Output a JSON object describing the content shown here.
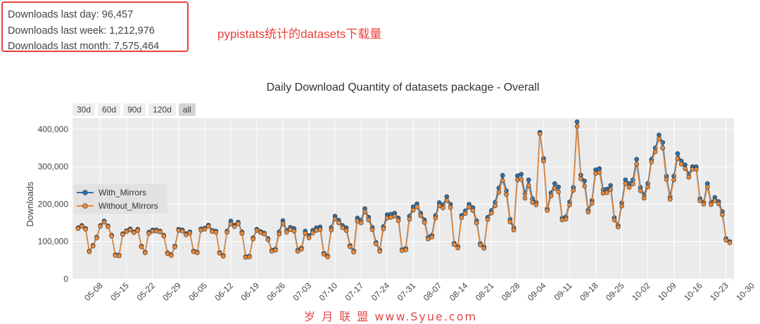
{
  "stats": {
    "last_day": "Downloads last day: 96,457",
    "last_week": "Downloads last week: 1,212,976",
    "last_month": "Downloads last month: 7,575,464"
  },
  "annotation": "pypistats统计的datasets下载量",
  "range_selector": [
    "30d",
    "60d",
    "90d",
    "120d",
    "all"
  ],
  "range_selected": "all",
  "watermark": "岁 月 联 盟  www.Syue.com",
  "colors": {
    "with_mirrors": "#2f6fa8",
    "without_mirrors": "#e8893a",
    "plot_bg": "#ebebeb",
    "accent": "#e8403a"
  },
  "chart_data": {
    "type": "line",
    "title": "Daily Download Quantity of datasets package - Overall",
    "xlabel": "",
    "ylabel": "Downloads",
    "ylim": [
      0,
      430000
    ],
    "yticks": [
      0,
      100000,
      200000,
      300000,
      400000
    ],
    "ytick_labels": [
      "0",
      "100,000",
      "200,000",
      "300,000",
      "400,000"
    ],
    "xtick_labels": [
      "05-08",
      "05-15",
      "05-22",
      "05-29",
      "06-05",
      "06-12",
      "06-19",
      "06-26",
      "07-03",
      "07-10",
      "07-17",
      "07-24",
      "07-31",
      "08-07",
      "08-14",
      "08-21",
      "08-28",
      "09-04",
      "09-11",
      "09-18",
      "09-25",
      "10-02",
      "10-09",
      "10-16",
      "10-23",
      "10-30"
    ],
    "x_start": "05-02",
    "legend": "left-middle",
    "grid": true,
    "series": [
      {
        "name": "With_Mirrors",
        "values": [
          137000,
          143000,
          135000,
          75000,
          90000,
          112000,
          143000,
          155000,
          142000,
          117000,
          65000,
          64000,
          121000,
          129000,
          134000,
          126000,
          133000,
          88000,
          72000,
          125000,
          131000,
          131000,
          128000,
          117000,
          70000,
          65000,
          88000,
          133000,
          131000,
          121000,
          126000,
          75000,
          72000,
          134000,
          136000,
          144000,
          130000,
          128000,
          71000,
          63000,
          128000,
          155000,
          144000,
          152000,
          126000,
          60000,
          61000,
          110000,
          133000,
          127000,
          123000,
          108000,
          77000,
          80000,
          126000,
          156000,
          130000,
          138000,
          135000,
          78000,
          83000,
          128000,
          116000,
          130000,
          137000,
          139000,
          69000,
          62000,
          138000,
          168000,
          157000,
          143000,
          137000,
          90000,
          76000,
          163000,
          157000,
          188000,
          165000,
          138000,
          98000,
          78000,
          140000,
          172000,
          173000,
          176000,
          163000,
          79000,
          82000,
          168000,
          193000,
          201000,
          176000,
          158000,
          112000,
          117000,
          170000,
          204000,
          198000,
          220000,
          200000,
          96000,
          87000,
          170000,
          182000,
          200000,
          191000,
          156000,
          95000,
          86000,
          165000,
          183000,
          205000,
          243000,
          277000,
          236000,
          160000,
          137000,
          276000,
          280000,
          228000,
          265000,
          215000,
          205000,
          392000,
          322000,
          188000,
          230000,
          255000,
          246000,
          163000,
          166000,
          206000,
          245000,
          420000,
          278000,
          262000,
          185000,
          210000,
          292000,
          295000,
          239000,
          240000,
          250000,
          164000,
          143000,
          203000,
          265000,
          255000,
          265000,
          320000,
          245000,
          225000,
          255000,
          320000,
          350000,
          385000,
          365000,
          275000,
          220000,
          275000,
          335000,
          315000,
          305000,
          280000,
          300000,
          300000,
          215000,
          205000,
          255000,
          205000,
          218000,
          207000,
          180000,
          108000,
          100000
        ]
      },
      {
        "name": "Without_Mirrors",
        "values": [
          135000,
          141000,
          133000,
          73000,
          88000,
          110000,
          141000,
          152000,
          140000,
          115000,
          63000,
          62000,
          119000,
          127000,
          131000,
          124000,
          130000,
          86000,
          70000,
          122000,
          128000,
          128000,
          126000,
          115000,
          68000,
          63000,
          86000,
          130000,
          128000,
          118000,
          123000,
          73000,
          70000,
          131000,
          133000,
          141000,
          127000,
          125000,
          69000,
          61000,
          125000,
          147000,
          140000,
          148000,
          122000,
          58000,
          59000,
          107000,
          130000,
          124000,
          120000,
          105000,
          74000,
          77000,
          120000,
          148000,
          125000,
          132000,
          128000,
          74000,
          80000,
          122000,
          110000,
          123000,
          130000,
          132000,
          66000,
          59000,
          131000,
          160000,
          150000,
          137000,
          130000,
          86000,
          72000,
          155000,
          150000,
          180000,
          158000,
          132000,
          94000,
          74000,
          134000,
          163000,
          165000,
          168000,
          156000,
          76000,
          78000,
          160000,
          184000,
          193000,
          169000,
          151000,
          107000,
          112000,
          163000,
          196000,
          190000,
          210000,
          191000,
          92000,
          83000,
          164000,
          175000,
          192000,
          183000,
          150000,
          91000,
          82000,
          159000,
          176000,
          196000,
          232000,
          263000,
          226000,
          153000,
          131000,
          265000,
          266000,
          216000,
          250000,
          205000,
          198000,
          388000,
          315000,
          183000,
          222000,
          242000,
          233000,
          158000,
          160000,
          198000,
          237000,
          408000,
          268000,
          248000,
          179000,
          202000,
          282000,
          285000,
          229000,
          231000,
          239000,
          158000,
          139000,
          195000,
          255000,
          245000,
          254000,
          307000,
          236000,
          216000,
          246000,
          313000,
          340000,
          375000,
          350000,
          266000,
          213000,
          265000,
          322000,
          307000,
          295000,
          272000,
          293000,
          293000,
          209000,
          200000,
          246000,
          199000,
          209000,
          201000,
          172000,
          104000,
          97000
        ]
      }
    ]
  }
}
